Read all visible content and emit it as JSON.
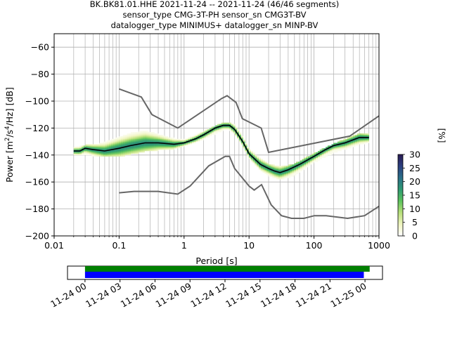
{
  "title_lines": [
    "BK.BK81.01.HHE   2021-11-24 -- 2021-11-24  (46/46 segments)",
    "sensor_type CMG-3T-PH sensor_sn CMG3T-BV",
    "datalogger_type MINIMUS+ datalogger_sn MINP-BV"
  ],
  "chart_data": {
    "type": "heatmap",
    "xlabel": "Period [s]",
    "ylabel_parts": [
      "Power [m",
      "2",
      "/s",
      "4",
      "/Hz] [dB]"
    ],
    "x_scale": "log",
    "xlim": [
      0.01,
      1000
    ],
    "ylim": [
      -200,
      -50
    ],
    "x_ticks": [
      0.01,
      0.1,
      1,
      10,
      100,
      1000
    ],
    "x_tick_labels": [
      "0.01",
      "0.1",
      "1",
      "10",
      "100",
      "1000"
    ],
    "y_ticks": [
      -200,
      -180,
      -160,
      -140,
      -120,
      -100,
      -80,
      -60
    ],
    "y_tick_labels": [
      "−200",
      "−180",
      "−160",
      "−140",
      "−120",
      "−100",
      "−80",
      "−60"
    ],
    "grid": true,
    "colorbar": {
      "label": "[%]",
      "min": 0,
      "max": 30,
      "ticks": [
        0,
        5,
        10,
        15,
        20,
        25,
        30
      ],
      "tick_labels": [
        "0",
        "5",
        "10",
        "15",
        "20",
        "25",
        "30"
      ],
      "colors": [
        "#ffffff",
        "#f0f5c0",
        "#b8e07a",
        "#5cc35c",
        "#2e9a72",
        "#2a6f88",
        "#2b3f80",
        "#2a1a52"
      ]
    },
    "nhnm": {
      "color": "#666666",
      "points": [
        [
          0.1,
          -91
        ],
        [
          0.22,
          -97
        ],
        [
          0.32,
          -110
        ],
        [
          0.8,
          -120
        ],
        [
          3.8,
          -98
        ],
        [
          4.6,
          -96
        ],
        [
          6.3,
          -101
        ],
        [
          7.9,
          -113
        ],
        [
          15.4,
          -120
        ],
        [
          20,
          -138
        ],
        [
          354.8,
          -126
        ],
        [
          1000,
          -111
        ]
      ]
    },
    "nlnm": {
      "color": "#666666",
      "points": [
        [
          0.1,
          -168
        ],
        [
          0.17,
          -167
        ],
        [
          0.4,
          -167
        ],
        [
          0.8,
          -169
        ],
        [
          1.24,
          -163
        ],
        [
          2.4,
          -148
        ],
        [
          4.3,
          -141
        ],
        [
          5.0,
          -141
        ],
        [
          6.0,
          -150
        ],
        [
          10,
          -163
        ],
        [
          12,
          -166
        ],
        [
          15.6,
          -162
        ],
        [
          21.9,
          -177
        ],
        [
          31.6,
          -185
        ],
        [
          45,
          -187
        ],
        [
          70,
          -187
        ],
        [
          101,
          -185
        ],
        [
          154,
          -185
        ],
        [
          328,
          -187
        ],
        [
          600,
          -185
        ],
        [
          1000,
          -178
        ]
      ]
    },
    "mean_curve": {
      "color": "#000000",
      "points": [
        [
          0.02,
          -137
        ],
        [
          0.025,
          -137
        ],
        [
          0.03,
          -135
        ],
        [
          0.04,
          -136
        ],
        [
          0.06,
          -137
        ],
        [
          0.1,
          -135
        ],
        [
          0.15,
          -133
        ],
        [
          0.25,
          -131
        ],
        [
          0.4,
          -131
        ],
        [
          0.7,
          -132
        ],
        [
          1.0,
          -131
        ],
        [
          1.5,
          -128
        ],
        [
          2.0,
          -125
        ],
        [
          3.0,
          -120
        ],
        [
          4.0,
          -118
        ],
        [
          5.0,
          -118
        ],
        [
          6.0,
          -121
        ],
        [
          8.0,
          -130
        ],
        [
          10,
          -139
        ],
        [
          15,
          -147
        ],
        [
          20,
          -150
        ],
        [
          25,
          -152
        ],
        [
          30,
          -153
        ],
        [
          40,
          -151
        ],
        [
          60,
          -147
        ],
        [
          100,
          -141
        ],
        [
          150,
          -136
        ],
        [
          200,
          -133
        ],
        [
          300,
          -131
        ],
        [
          500,
          -127
        ],
        [
          700,
          -127
        ]
      ]
    },
    "density_band": {
      "x": [
        0.02,
        0.03,
        0.05,
        0.1,
        0.15,
        0.25,
        0.4,
        0.7,
        1.0,
        2.0,
        4.0,
        5.0,
        6.0,
        8.0,
        10,
        15,
        20,
        30,
        50,
        100,
        200,
        500,
        700
      ],
      "lower": [
        -140,
        -139,
        -141,
        -141,
        -139,
        -137,
        -136,
        -135,
        -133,
        -128,
        -121,
        -121,
        -124,
        -133,
        -142,
        -151,
        -155,
        -158,
        -155,
        -145,
        -138,
        -132,
        -130
      ],
      "upper": [
        -135,
        -133,
        -132,
        -127,
        -124,
        -122,
        -125,
        -128,
        -129,
        -123,
        -116,
        -116,
        -118,
        -127,
        -136,
        -143,
        -147,
        -149,
        -147,
        -139,
        -132,
        -124,
        -124
      ]
    },
    "time_axis": {
      "tick_labels": [
        "11-24 00",
        "11-24 03",
        "11-24 06",
        "11-24 09",
        "11-24 12",
        "11-24 15",
        "11-24 18",
        "11-24 21",
        "11-25 00"
      ],
      "range_hours": [
        -1.5,
        25.5
      ],
      "data_coverage_hours": [
        0,
        24.4
      ],
      "data_color": "#008000",
      "psd_coverage_hours": [
        0,
        23.9
      ],
      "psd_color": "#0000ff"
    }
  }
}
